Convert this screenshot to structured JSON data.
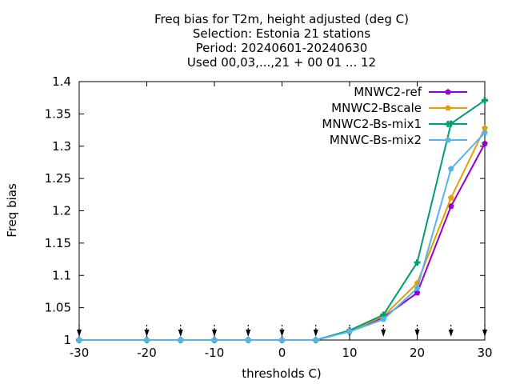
{
  "chart_data": {
    "type": "line",
    "title_lines": [
      "Freq bias  for T2m, height adjusted (deg C)",
      "Selection: Estonia     21 stations",
      "Period: 20240601-20240630",
      "Used 00,03,...,21 + 00 01 ... 12"
    ],
    "xlabel": "thresholds C)",
    "ylabel": "Freq bias",
    "xlim": [
      -30,
      30
    ],
    "ylim": [
      1,
      1.4
    ],
    "x_ticks": [
      "-30",
      "-20",
      "-10",
      "0",
      "10",
      "20",
      "30"
    ],
    "y_ticks": [
      "1",
      "1.05",
      "1.1",
      "1.15",
      "1.2",
      "1.25",
      "1.3",
      "1.35",
      "1.4"
    ],
    "grid": false,
    "legend_position": "top-right",
    "x": [
      -30,
      -20,
      -15,
      -10,
      -5,
      0,
      5,
      10,
      15,
      20,
      25,
      30
    ],
    "series": [
      {
        "name": "MNWC2-ref",
        "color": "#9400d3",
        "marker": "pentagon",
        "values": [
          1,
          1,
          1,
          1,
          1,
          1,
          1,
          1.014,
          1.035,
          1.073,
          1.207,
          1.304
        ]
      },
      {
        "name": "MNWC2-Bscale",
        "color": "#e69f00",
        "marker": "pentagon",
        "values": [
          1,
          1,
          1,
          1,
          1,
          1,
          1,
          1.014,
          1.037,
          1.088,
          1.22,
          1.328
        ]
      },
      {
        "name": "MNWC2-Bs-mix1",
        "color": "#009e73",
        "marker": "plus",
        "values": [
          1,
          1,
          1,
          1,
          1,
          1,
          1,
          1.015,
          1.039,
          1.12,
          1.335,
          1.371
        ]
      },
      {
        "name": "MNWC-Bs-mix2",
        "color": "#56b4e9",
        "marker": "pentagon",
        "values": [
          1,
          1,
          1,
          1,
          1,
          1,
          1,
          1.013,
          1.032,
          1.08,
          1.265,
          1.321
        ]
      }
    ],
    "threshold_markers_x": [
      -30,
      -20,
      -15,
      -10,
      -5,
      0,
      5,
      10,
      15,
      20,
      25,
      30
    ]
  }
}
